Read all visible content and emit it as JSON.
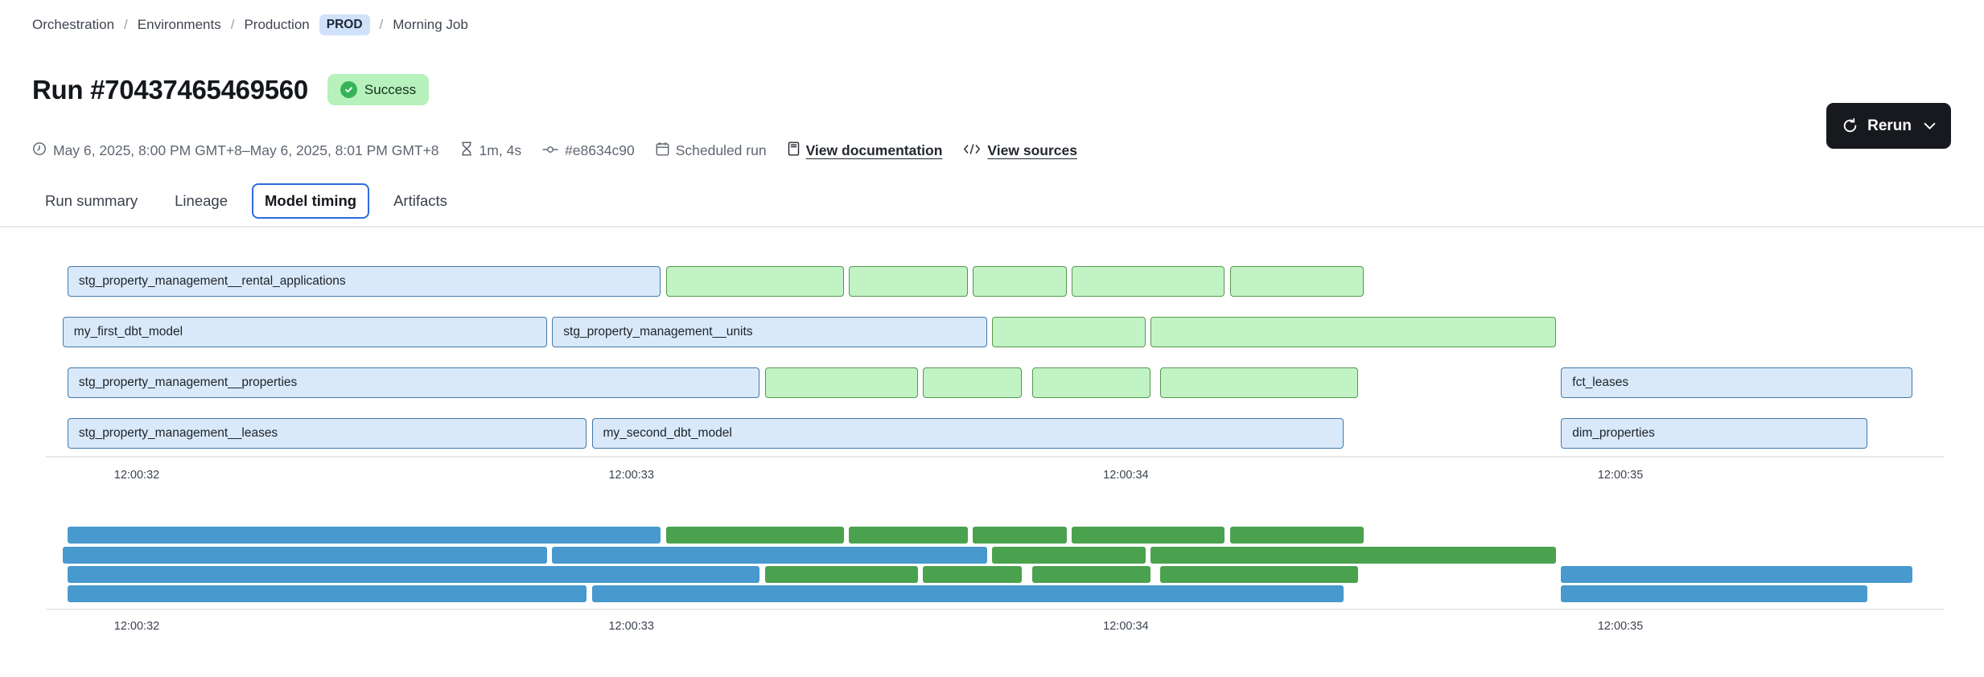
{
  "breadcrumb": {
    "separator": "/",
    "items": [
      "Orchestration",
      "Environments",
      "Production"
    ],
    "env_badge": "PROD",
    "last_item": "Morning Job"
  },
  "header": {
    "title": "Run #70437465469560",
    "status": "Success"
  },
  "meta": {
    "time_range": "May 6, 2025, 8:00 PM GMT+8–May 6, 2025, 8:01 PM GMT+8",
    "duration": "1m, 4s",
    "commit": "#e8634c90",
    "trigger": "Scheduled run",
    "docs_link": "View documentation",
    "sources_link": "View sources"
  },
  "actions": {
    "rerun_label": "Rerun"
  },
  "tabs": {
    "items": [
      {
        "label": "Run summary",
        "active": false
      },
      {
        "label": "Lineage",
        "active": false
      },
      {
        "label": "Model timing",
        "active": true
      },
      {
        "label": "Artifacts",
        "active": false
      }
    ]
  },
  "chart_data": {
    "type": "gantt",
    "title": "Model timing",
    "x_unit": "time of day (hh:mm:ss)",
    "x_ticks": [
      {
        "s": 32,
        "label": "12:00:32"
      },
      {
        "s": 33,
        "label": "12:00:33"
      },
      {
        "s": 34,
        "label": "12:00:34"
      },
      {
        "s": 35,
        "label": "12:00:35"
      }
    ],
    "colors": {
      "detail_blue_fill": "#d9e9fa",
      "detail_blue_border": "#4279a8",
      "detail_green_fill": "#c1f3c5",
      "detail_green_border": "#55984f",
      "overview_blue": "#4799ce",
      "overview_green": "#4aa24e"
    },
    "rows": [
      {
        "bars": [
          {
            "label": "stg_property_management__rental_applications",
            "color": "blue",
            "start": 31.86,
            "end": 33.06
          },
          {
            "color": "green",
            "start": 33.07,
            "end": 33.43
          },
          {
            "color": "green",
            "start": 33.44,
            "end": 33.68
          },
          {
            "color": "green",
            "start": 33.69,
            "end": 33.88
          },
          {
            "color": "green",
            "start": 33.89,
            "end": 34.2
          },
          {
            "color": "green",
            "start": 34.21,
            "end": 34.48
          }
        ]
      },
      {
        "bars": [
          {
            "label": "my_first_dbt_model",
            "color": "blue",
            "start": 31.85,
            "end": 32.83
          },
          {
            "label": "stg_property_management__units",
            "color": "blue",
            "start": 32.84,
            "end": 33.72
          },
          {
            "color": "green",
            "start": 33.73,
            "end": 34.04
          },
          {
            "color": "green",
            "start": 34.05,
            "end": 34.87
          }
        ]
      },
      {
        "bars": [
          {
            "label": "stg_property_management__properties",
            "color": "blue",
            "start": 31.86,
            "end": 33.26
          },
          {
            "color": "green",
            "start": 33.27,
            "end": 33.58
          },
          {
            "color": "green",
            "start": 33.59,
            "end": 33.79
          },
          {
            "color": "green",
            "start": 33.81,
            "end": 34.05
          },
          {
            "color": "green",
            "start": 34.07,
            "end": 34.47
          },
          {
            "label": "fct_leases",
            "color": "blue",
            "start": 34.88,
            "end": 35.59
          }
        ]
      },
      {
        "bars": [
          {
            "label": "stg_property_management__leases",
            "color": "blue",
            "start": 31.86,
            "end": 32.91
          },
          {
            "label": "my_second_dbt_model",
            "color": "blue",
            "start": 32.92,
            "end": 34.44
          },
          {
            "label": "dim_properties",
            "color": "blue",
            "start": 34.88,
            "end": 35.5
          }
        ]
      }
    ]
  }
}
